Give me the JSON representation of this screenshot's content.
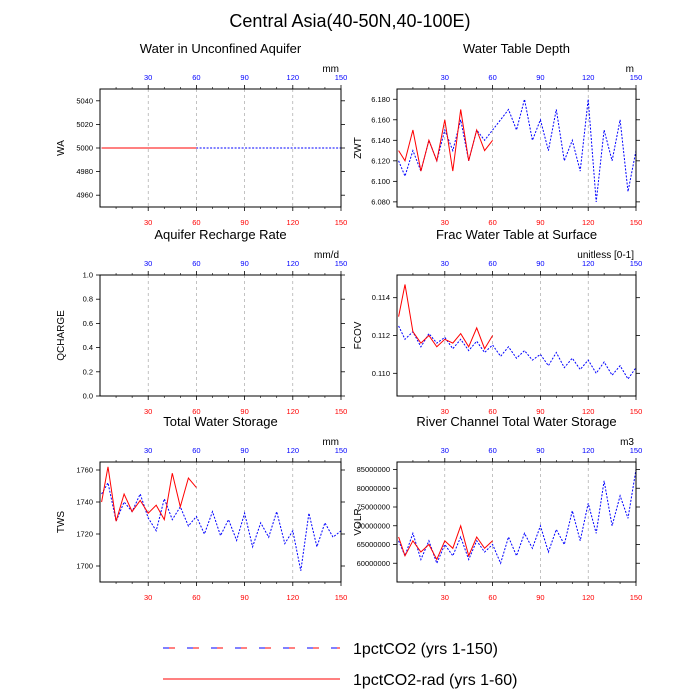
{
  "title": "Central Asia(40-50N,40-100E)",
  "colors": {
    "series_150": "#0000ff",
    "series_60": "#ff0000",
    "grid": "#9a9a9a",
    "axis": "#000000"
  },
  "x_ticks": [
    30,
    60,
    90,
    120,
    150
  ],
  "legend": [
    {
      "label": "1pctCO2 (yrs 1-150)",
      "style": "dashed"
    },
    {
      "label": "1pctCO2-rad (yrs 1-60)",
      "style": "solid"
    }
  ],
  "chart_data": [
    {
      "type": "line",
      "title": "Water in Unconfined Aquifer",
      "ylabel": "WA",
      "unit": "mm",
      "xlim": [
        0,
        150
      ],
      "ylim": [
        4950,
        5050
      ],
      "yticks": [
        4960,
        4980,
        5000,
        5020,
        5040
      ],
      "ytick_labels": [
        "4960",
        "4980",
        "5000",
        "5020",
        "5040"
      ],
      "series": [
        {
          "label": "1pctCO2 (yrs 1-150)",
          "x": [
            1,
            150
          ],
          "values": [
            5000,
            5000
          ]
        },
        {
          "label": "1pctCO2-rad (yrs 1-60)",
          "x": [
            1,
            60
          ],
          "values": [
            5000,
            5000
          ]
        }
      ]
    },
    {
      "type": "line",
      "title": "Water Table Depth",
      "ylabel": "ZWT",
      "unit": "m",
      "xlim": [
        0,
        150
      ],
      "ylim": [
        6.075,
        6.19
      ],
      "yticks": [
        6.08,
        6.1,
        6.12,
        6.14,
        6.16,
        6.18
      ],
      "ytick_labels": [
        "6.080",
        "6.100",
        "6.120",
        "6.140",
        "6.160",
        "6.180"
      ],
      "series": [
        {
          "label": "1pctCO2 (yrs 1-150)",
          "x": [
            1,
            5,
            10,
            15,
            20,
            25,
            30,
            35,
            40,
            45,
            50,
            55,
            60,
            65,
            70,
            75,
            80,
            85,
            90,
            95,
            100,
            105,
            110,
            115,
            120,
            125,
            130,
            135,
            140,
            145,
            150
          ],
          "values": [
            6.12,
            6.105,
            6.13,
            6.11,
            6.14,
            6.12,
            6.15,
            6.13,
            6.16,
            6.12,
            6.15,
            6.14,
            6.15,
            6.16,
            6.17,
            6.15,
            6.18,
            6.14,
            6.16,
            6.13,
            6.17,
            6.12,
            6.14,
            6.11,
            6.18,
            6.08,
            6.15,
            6.12,
            6.16,
            6.09,
            6.13
          ]
        },
        {
          "label": "1pctCO2-rad (yrs 1-60)",
          "x": [
            1,
            5,
            10,
            15,
            20,
            25,
            30,
            35,
            40,
            45,
            50,
            55,
            60
          ],
          "values": [
            6.13,
            6.12,
            6.15,
            6.11,
            6.14,
            6.12,
            6.16,
            6.11,
            6.17,
            6.12,
            6.15,
            6.13,
            6.14
          ]
        }
      ]
    },
    {
      "type": "line",
      "title": "Aquifer Recharge Rate",
      "ylabel": "QCHARGE",
      "unit": "mm/d",
      "xlim": [
        0,
        150
      ],
      "ylim": [
        0,
        1
      ],
      "yticks": [
        0,
        0.2,
        0.4,
        0.6,
        0.8,
        1
      ],
      "ytick_labels": [
        "0.0",
        "0.2",
        "0.4",
        "0.6",
        "0.8",
        "1.0"
      ],
      "series": []
    },
    {
      "type": "line",
      "title": "Frac Water Table at Surface",
      "ylabel": "FCOV",
      "unit": "unitless [0-1]",
      "xlim": [
        0,
        150
      ],
      "ylim": [
        0.1088,
        0.1152
      ],
      "yticks": [
        0.11,
        0.112,
        0.114
      ],
      "ytick_labels": [
        "0.110",
        "0.112",
        "0.114"
      ],
      "series": [
        {
          "label": "1pctCO2 (yrs 1-150)",
          "x": [
            1,
            5,
            10,
            15,
            20,
            25,
            30,
            35,
            40,
            45,
            50,
            55,
            60,
            65,
            70,
            75,
            80,
            85,
            90,
            95,
            100,
            105,
            110,
            115,
            120,
            125,
            130,
            135,
            140,
            145,
            150
          ],
          "values": [
            0.1125,
            0.1118,
            0.1122,
            0.1114,
            0.1121,
            0.1116,
            0.1119,
            0.1113,
            0.1118,
            0.1112,
            0.1117,
            0.1111,
            0.1115,
            0.1109,
            0.1114,
            0.1108,
            0.1112,
            0.1107,
            0.111,
            0.1104,
            0.1111,
            0.1103,
            0.1108,
            0.1102,
            0.1107,
            0.11,
            0.1106,
            0.1099,
            0.1104,
            0.1097,
            0.1103
          ]
        },
        {
          "label": "1pctCO2-rad (yrs 1-60)",
          "x": [
            1,
            5,
            10,
            15,
            20,
            25,
            30,
            35,
            40,
            45,
            50,
            55,
            60
          ],
          "values": [
            0.113,
            0.1147,
            0.1122,
            0.1116,
            0.112,
            0.1114,
            0.1118,
            0.1116,
            0.1121,
            0.1114,
            0.1124,
            0.1113,
            0.112
          ]
        }
      ]
    },
    {
      "type": "line",
      "title": "Total Water Storage",
      "ylabel": "TWS",
      "unit": "mm",
      "xlim": [
        0,
        150
      ],
      "ylim": [
        1690,
        1765
      ],
      "yticks": [
        1700,
        1720,
        1740,
        1760
      ],
      "ytick_labels": [
        "1700",
        "1720",
        "1740",
        "1760"
      ],
      "series": [
        {
          "label": "1pctCO2 (yrs 1-150)",
          "x": [
            1,
            5,
            10,
            15,
            20,
            25,
            30,
            35,
            40,
            45,
            50,
            55,
            60,
            65,
            70,
            75,
            80,
            85,
            90,
            95,
            100,
            105,
            110,
            115,
            120,
            125,
            130,
            135,
            140,
            145,
            150
          ],
          "values": [
            1745,
            1752,
            1728,
            1740,
            1734,
            1745,
            1730,
            1722,
            1742,
            1729,
            1737,
            1725,
            1731,
            1720,
            1734,
            1719,
            1729,
            1716,
            1733,
            1712,
            1727,
            1718,
            1734,
            1714,
            1722,
            1697,
            1733,
            1712,
            1727,
            1718,
            1722
          ]
        },
        {
          "label": "1pctCO2-rad (yrs 1-60)",
          "x": [
            1,
            5,
            10,
            15,
            20,
            25,
            30,
            35,
            40,
            45,
            50,
            55,
            60
          ],
          "values": [
            1740,
            1762,
            1728,
            1745,
            1734,
            1741,
            1733,
            1738,
            1729,
            1758,
            1737,
            1755,
            1749
          ]
        }
      ]
    },
    {
      "type": "line",
      "title": "River Channel Total Water Storage",
      "ylabel": "VOLR",
      "unit": "m3",
      "xlim": [
        0,
        150
      ],
      "ylim": [
        55000000,
        87000000
      ],
      "yticks": [
        60000000,
        65000000,
        70000000,
        75000000,
        80000000,
        85000000
      ],
      "ytick_labels": [
        "60000000",
        "65000000",
        "70000000",
        "75000000",
        "80000000",
        "85000000"
      ],
      "series": [
        {
          "label": "1pctCO2 (yrs 1-150)",
          "x": [
            1,
            5,
            10,
            15,
            20,
            25,
            30,
            35,
            40,
            45,
            50,
            55,
            60,
            65,
            70,
            75,
            80,
            85,
            90,
            95,
            100,
            105,
            110,
            115,
            120,
            125,
            130,
            135,
            140,
            145,
            150
          ],
          "values": [
            66000000,
            62000000,
            68000000,
            61000000,
            66000000,
            60000000,
            65000000,
            62000000,
            67000000,
            61000000,
            66000000,
            63000000,
            65000000,
            60000000,
            67000000,
            62000000,
            68000000,
            64000000,
            70000000,
            63000000,
            69000000,
            65000000,
            74000000,
            66000000,
            76000000,
            68000000,
            82000000,
            70000000,
            78000000,
            72000000,
            85000000
          ]
        },
        {
          "label": "1pctCO2-rad (yrs 1-60)",
          "x": [
            1,
            5,
            10,
            15,
            20,
            25,
            30,
            35,
            40,
            45,
            50,
            55,
            60
          ],
          "values": [
            67000000,
            62000000,
            66000000,
            63000000,
            65000000,
            61000000,
            66000000,
            64000000,
            70000000,
            62000000,
            67000000,
            64000000,
            66000000
          ]
        }
      ]
    }
  ]
}
